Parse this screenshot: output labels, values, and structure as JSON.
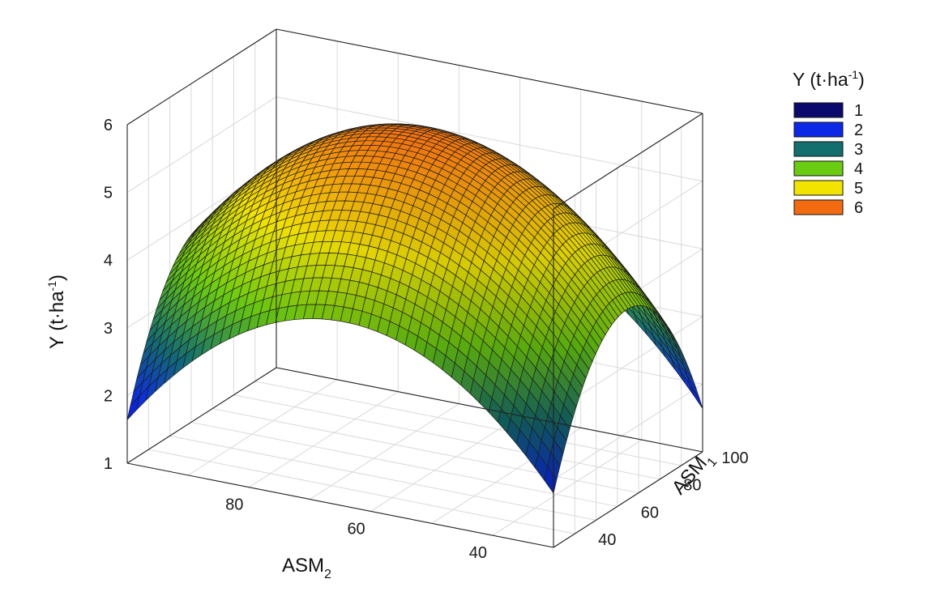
{
  "chart_data": {
    "type": "surface",
    "title": "",
    "zlabel": {
      "main": "Y (t·ha",
      "sup": "-1",
      "close": ")"
    },
    "xlabel": {
      "main": "ASM",
      "sub": "2"
    },
    "ylabel": {
      "main": "ASM",
      "sub": "1"
    },
    "z_ticks": [
      "1",
      "2",
      "3",
      "4",
      "5",
      "6"
    ],
    "x_ticks": [
      "80",
      "60",
      "40"
    ],
    "y_ticks": [
      "40",
      "60",
      "80",
      "100"
    ],
    "zlim": [
      1,
      6
    ],
    "xlim": [
      100,
      30
    ],
    "ylim": [
      30,
      100
    ],
    "grid": true,
    "legend": {
      "placement": "right",
      "title": {
        "main": "Y (t·ha",
        "sup": "-1",
        "close": ")"
      },
      "entries": [
        {
          "label": "1",
          "color": "#0a0a6e"
        },
        {
          "label": "2",
          "color": "#0b28e6"
        },
        {
          "label": "3",
          "color": "#136e6e"
        },
        {
          "label": "4",
          "color": "#6acc10"
        },
        {
          "label": "5",
          "color": "#f2e400"
        },
        {
          "label": "6",
          "color": "#f26b10"
        }
      ]
    },
    "surface_samples": {
      "asm1": [
        30,
        45,
        62,
        80,
        100
      ],
      "asm2": [
        30,
        45,
        62,
        80,
        100
      ],
      "y": [
        [
          1.7,
          3.4,
          3.9,
          3.4,
          1.7
        ],
        [
          3.1,
          4.8,
          5.3,
          4.8,
          3.1
        ],
        [
          3.6,
          5.3,
          5.8,
          5.3,
          3.6
        ],
        [
          3.1,
          4.8,
          5.3,
          4.8,
          3.1
        ],
        [
          1.7,
          3.4,
          3.9,
          3.4,
          1.7
        ]
      ]
    }
  }
}
